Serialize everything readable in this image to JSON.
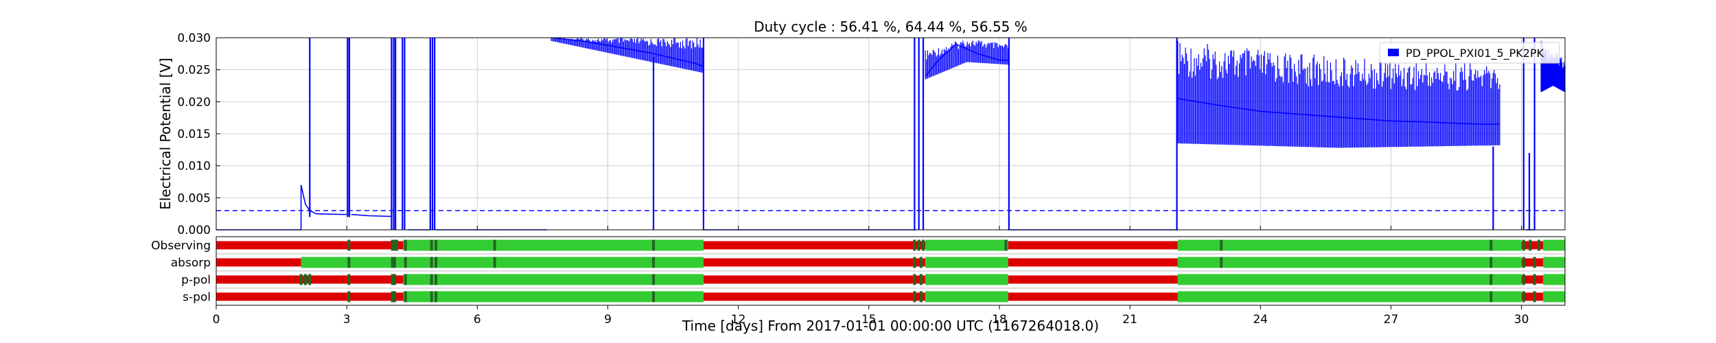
{
  "chart_data": {
    "type": "line",
    "title": "Duty cycle : 56.41 %, 64.44 %, 56.55 %",
    "xlabel": "Time [days] From 2017-01-01 00:00:00 UTC (1167264018.0)",
    "ylabel": "Electrical Potential [V]",
    "xlim": [
      0,
      31
    ],
    "ylim": [
      0,
      0.03
    ],
    "xticks": [
      0,
      3,
      6,
      9,
      12,
      15,
      18,
      21,
      24,
      27,
      30
    ],
    "xtick_labels": [
      "0",
      "3",
      "6",
      "9",
      "12",
      "15",
      "18",
      "21",
      "24",
      "27",
      "30"
    ],
    "yticks": [
      0,
      0.005,
      0.01,
      0.015,
      0.02,
      0.025,
      0.03
    ],
    "ytick_labels": [
      "0.000",
      "0.005",
      "0.010",
      "0.015",
      "0.020",
      "0.025",
      "0.030"
    ],
    "grid": true,
    "legend_position": "top-right",
    "threshold": 0.003,
    "series": [
      {
        "name": "PD_PPOL_PXI01_5_PK2PK",
        "color": "#0000ff",
        "segments": [
          {
            "x": [
              0,
              1.95
            ],
            "y": [
              0,
              0
            ]
          },
          {
            "x": [
              1.95,
              1.95,
              2.05,
              2.15,
              2.3,
              2.9,
              3.0
            ],
            "y": [
              0,
              0.007,
              0.004,
              0.003,
              0.0025,
              0.0024,
              0.0024
            ]
          },
          {
            "x": [
              3.1,
              3.5,
              4.0,
              4.05
            ],
            "y": [
              0.0024,
              0.0022,
              0.0021,
              0.0021
            ]
          },
          {
            "x": [
              4.4,
              4.9
            ],
            "y": [
              0,
              0
            ]
          },
          {
            "x": [
              5.05,
              7.6
            ],
            "y": [
              0,
              0
            ]
          },
          {
            "x": [
              7.7,
              8.0,
              8.5,
              9.0,
              9.5,
              10.0,
              10.5,
              11.0,
              11.2
            ],
            "y": [
              0.03,
              0.0298,
              0.0294,
              0.0288,
              0.0282,
              0.0276,
              0.0268,
              0.026,
              0.0255
            ]
          },
          {
            "x": [
              11.2,
              16.1
            ],
            "y": [
              0,
              0
            ]
          },
          {
            "x": [
              16.3,
              16.6,
              17.0,
              17.5,
              18.0,
              18.2
            ],
            "y": [
              0.024,
              0.0265,
              0.029,
              0.0275,
              0.0265,
              0.0265
            ]
          },
          {
            "x": [
              18.2,
              22.1
            ],
            "y": [
              0,
              0
            ]
          },
          {
            "x": [
              22.1,
              23,
              24,
              25,
              26,
              27,
              28,
              29,
              29.5
            ],
            "y": [
              0.0205,
              0.0195,
              0.0185,
              0.018,
              0.0175,
              0.017,
              0.0168,
              0.0165,
              0.0165
            ]
          },
          {
            "x": [
              30.1,
              30.3
            ],
            "y": [
              0,
              0
            ]
          },
          {
            "x": [
              30.5,
              30.8,
              31.0
            ],
            "y": [
              0.026,
              0.024,
              0.023
            ]
          }
        ],
        "spikes": [
          {
            "x": 2.15,
            "y0": 0.002,
            "y1": 0.03
          },
          {
            "x": 3.02,
            "y0": 0.002,
            "y1": 0.03
          },
          {
            "x": 3.06,
            "y0": 0.002,
            "y1": 0.03
          },
          {
            "x": 4.03,
            "y0": 0.0,
            "y1": 0.03
          },
          {
            "x": 4.08,
            "y0": 0.0,
            "y1": 0.03
          },
          {
            "x": 4.12,
            "y0": 0.0,
            "y1": 0.03
          },
          {
            "x": 4.28,
            "y0": 0.0,
            "y1": 0.03
          },
          {
            "x": 4.33,
            "y0": 0.0,
            "y1": 0.03
          },
          {
            "x": 4.92,
            "y0": 0.0,
            "y1": 0.03
          },
          {
            "x": 4.97,
            "y0": 0.0,
            "y1": 0.03
          },
          {
            "x": 5.02,
            "y0": 0.0,
            "y1": 0.03
          },
          {
            "x": 10.05,
            "y0": 0.0,
            "y1": 0.027
          },
          {
            "x": 11.2,
            "y0": 0.0,
            "y1": 0.03
          },
          {
            "x": 16.05,
            "y0": 0.0,
            "y1": 0.03
          },
          {
            "x": 16.15,
            "y0": 0.0,
            "y1": 0.03
          },
          {
            "x": 16.25,
            "y0": 0.0,
            "y1": 0.03
          },
          {
            "x": 18.22,
            "y0": 0.0,
            "y1": 0.03
          },
          {
            "x": 22.08,
            "y0": 0.0,
            "y1": 0.03
          },
          {
            "x": 29.35,
            "y0": 0.0,
            "y1": 0.013
          },
          {
            "x": 30.05,
            "y0": 0.0,
            "y1": 0.03
          },
          {
            "x": 30.18,
            "y0": 0.0,
            "y1": 0.012
          },
          {
            "x": 30.3,
            "y0": 0.0,
            "y1": 0.03
          }
        ],
        "bands": [
          {
            "x0": 7.7,
            "x1": 11.2,
            "ylo": [
              0.0295,
              0.027,
              0.0245
            ],
            "yhi": [
              0.03,
              0.03,
              0.03
            ]
          },
          {
            "x0": 16.3,
            "x1": 18.2,
            "ylo": [
              0.0235,
              0.0262,
              0.0258
            ],
            "yhi": [
              0.028,
              0.03,
              0.029
            ]
          },
          {
            "x0": 22.1,
            "x1": 29.5,
            "ylo": [
              0.0135,
              0.0128,
              0.0132
            ],
            "yhi": [
              0.0295,
              0.027,
              0.026
            ]
          },
          {
            "x0": 30.45,
            "x1": 31.0,
            "ylo": [
              0.0215,
              0.0225,
              0.0215
            ],
            "yhi": [
              0.0295,
              0.028,
              0.027
            ]
          }
        ]
      }
    ],
    "state_rows": {
      "labels": [
        "Observing",
        "absorp",
        "p-pol",
        "s-pol"
      ],
      "colors": {
        "on": "#33cc33",
        "off": "#dd0000",
        "dark": "#226622"
      },
      "rows": [
        {
          "on": [
            [
              4.3,
              11.2
            ],
            [
              16.3,
              18.2
            ],
            [
              22.1,
              30.0
            ],
            [
              30.5,
              31.0
            ]
          ],
          "off": [
            [
              0,
              4.3
            ],
            [
              11.2,
              16.3
            ],
            [
              18.2,
              22.1
            ],
            [
              30.0,
              30.5
            ]
          ],
          "dark_marks": [
            3.05,
            4.05,
            4.1,
            4.15,
            4.35,
            4.95,
            5.05,
            6.4,
            10.05,
            16.05,
            16.15,
            16.25,
            18.15,
            23.1,
            29.3,
            30.05,
            30.2,
            30.4
          ]
        },
        {
          "on": [
            [
              1.95,
              11.2
            ],
            [
              16.3,
              18.2
            ],
            [
              22.1,
              30.0
            ],
            [
              30.5,
              31.0
            ]
          ],
          "off": [
            [
              0,
              1.95
            ],
            [
              11.2,
              16.3
            ],
            [
              18.2,
              22.1
            ],
            [
              30.0,
              30.5
            ]
          ],
          "dark_marks": [
            3.05,
            4.05,
            4.1,
            4.35,
            4.95,
            5.05,
            6.4,
            10.05,
            16.05,
            16.2,
            23.1,
            29.3,
            30.05,
            30.3
          ]
        },
        {
          "on": [
            [
              4.3,
              11.2
            ],
            [
              16.3,
              18.2
            ],
            [
              22.1,
              30.0
            ],
            [
              30.5,
              31.0
            ]
          ],
          "off": [
            [
              0,
              4.3
            ],
            [
              11.2,
              16.3
            ],
            [
              18.2,
              22.1
            ],
            [
              30.0,
              30.5
            ]
          ],
          "dark_marks": [
            1.95,
            2.05,
            2.15,
            3.05,
            4.05,
            4.1,
            4.35,
            4.95,
            5.05,
            10.05,
            16.05,
            16.2,
            29.3,
            30.05,
            30.3
          ]
        },
        {
          "on": [
            [
              4.3,
              11.2
            ],
            [
              16.3,
              18.2
            ],
            [
              22.1,
              30.0
            ],
            [
              30.5,
              31.0
            ]
          ],
          "off": [
            [
              0,
              4.3
            ],
            [
              11.2,
              16.3
            ],
            [
              18.2,
              22.1
            ],
            [
              30.0,
              30.5
            ]
          ],
          "dark_marks": [
            3.05,
            4.05,
            4.1,
            4.35,
            4.95,
            5.05,
            10.05,
            16.05,
            16.2,
            29.3,
            30.05,
            30.3
          ]
        }
      ]
    }
  }
}
